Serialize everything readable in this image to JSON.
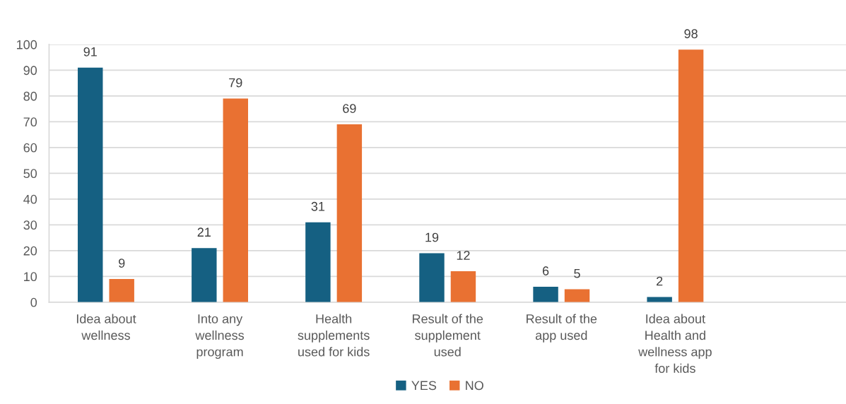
{
  "chart_data": {
    "type": "bar",
    "categories": [
      "Idea about wellness",
      "Into any wellness program",
      "Health supplements used for kids",
      "Result of the supplement used",
      "Result of the app used",
      "Idea about Health and wellness app for kids",
      null
    ],
    "series": [
      {
        "name": "YES",
        "color": "#156082",
        "values": [
          91,
          21,
          31,
          19,
          6,
          2,
          null
        ]
      },
      {
        "name": "NO",
        "color": "#e97132",
        "values": [
          9,
          79,
          69,
          12,
          5,
          98,
          null
        ]
      }
    ],
    "ylim": [
      0,
      100
    ],
    "yticks": [
      0,
      10,
      20,
      30,
      40,
      50,
      60,
      70,
      80,
      90,
      100
    ],
    "grid": "y",
    "legend": "bottom",
    "data_labels": true
  }
}
